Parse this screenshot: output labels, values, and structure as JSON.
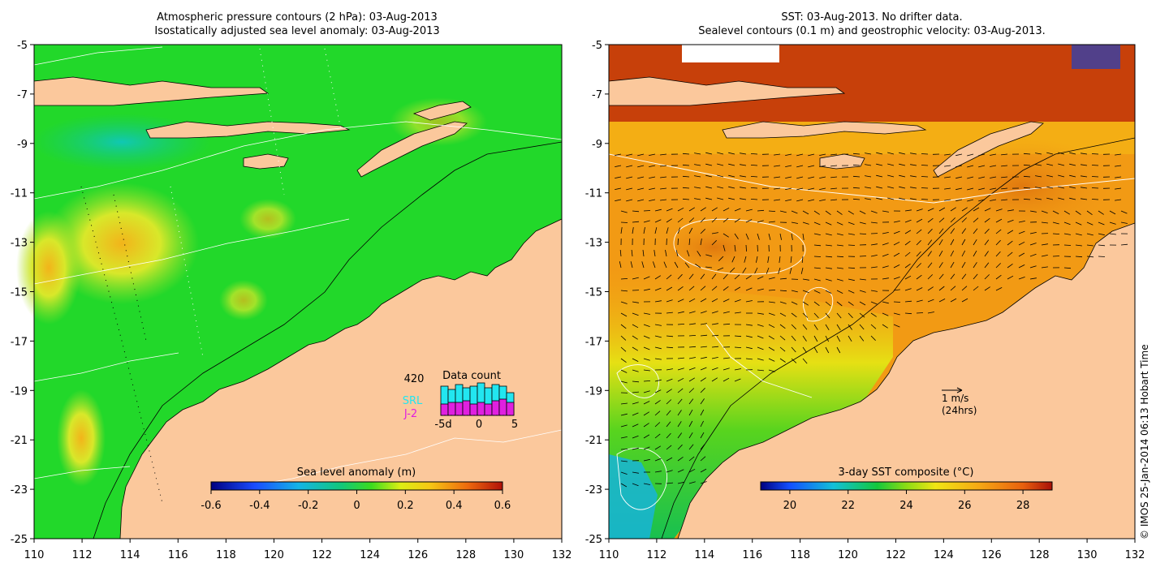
{
  "left_panel": {
    "title_line1": "Atmospheric pressure contours (2 hPa): 03-Aug-2013",
    "title_line2": "Isostatically adjusted sea level anomaly: 03-Aug-2013",
    "x_ticks": [
      "110",
      "112",
      "114",
      "116",
      "118",
      "120",
      "122",
      "124",
      "126",
      "128",
      "130",
      "132"
    ],
    "y_ticks": [
      "-5",
      "-7",
      "-9",
      "-11",
      "-13",
      "-15",
      "-17",
      "-19",
      "-21",
      "-23",
      "-25"
    ],
    "colorbar": {
      "label": "Sea level anomaly (m)",
      "ticks": [
        "-0.6",
        "-0.4",
        "-0.2",
        "0",
        "0.2",
        "0.4",
        "0.6"
      ],
      "range": [
        -0.6,
        0.6
      ]
    },
    "data_count": {
      "title": "Data count",
      "total": "420",
      "series": [
        {
          "name": "SRL",
          "color": "#22e6f0"
        },
        {
          "name": "J-2",
          "color": "#e020e0"
        }
      ],
      "x_ticks": [
        "-5d",
        "0",
        "5"
      ],
      "bars": [
        {
          "srl": 0.9,
          "j2": 0.35
        },
        {
          "srl": 0.8,
          "j2": 0.4
        },
        {
          "srl": 0.95,
          "j2": 0.4
        },
        {
          "srl": 0.85,
          "j2": 0.45
        },
        {
          "srl": 0.9,
          "j2": 0.35
        },
        {
          "srl": 1.0,
          "j2": 0.4
        },
        {
          "srl": 0.85,
          "j2": 0.35
        },
        {
          "srl": 0.95,
          "j2": 0.45
        },
        {
          "srl": 0.9,
          "j2": 0.5
        },
        {
          "srl": 0.7,
          "j2": 0.4
        }
      ]
    }
  },
  "right_panel": {
    "title_line1": "SST: 03-Aug-2013. No drifter data.",
    "title_line2": "Sealevel contours (0.1 m) and geostrophic velocity: 03-Aug-2013.",
    "x_ticks": [
      "110",
      "112",
      "114",
      "116",
      "118",
      "120",
      "122",
      "124",
      "126",
      "128",
      "130",
      "132"
    ],
    "y_ticks": [
      "-5",
      "-7",
      "-9",
      "-11",
      "-13",
      "-15",
      "-17",
      "-19",
      "-21",
      "-23",
      "-25"
    ],
    "colorbar": {
      "label": "3-day SST composite (°C)",
      "ticks": [
        "20",
        "22",
        "24",
        "26",
        "28"
      ],
      "range": [
        19,
        29
      ]
    },
    "velocity_scale": {
      "line1": "1 m/s",
      "line2": "(24hrs)"
    }
  },
  "credit": "© IMOS 25-Jan-2014 06:13 Hobart Time",
  "colors": {
    "land": "#fbc89c",
    "sla_field": "#22d82a",
    "sst_field": "#f29a14"
  }
}
